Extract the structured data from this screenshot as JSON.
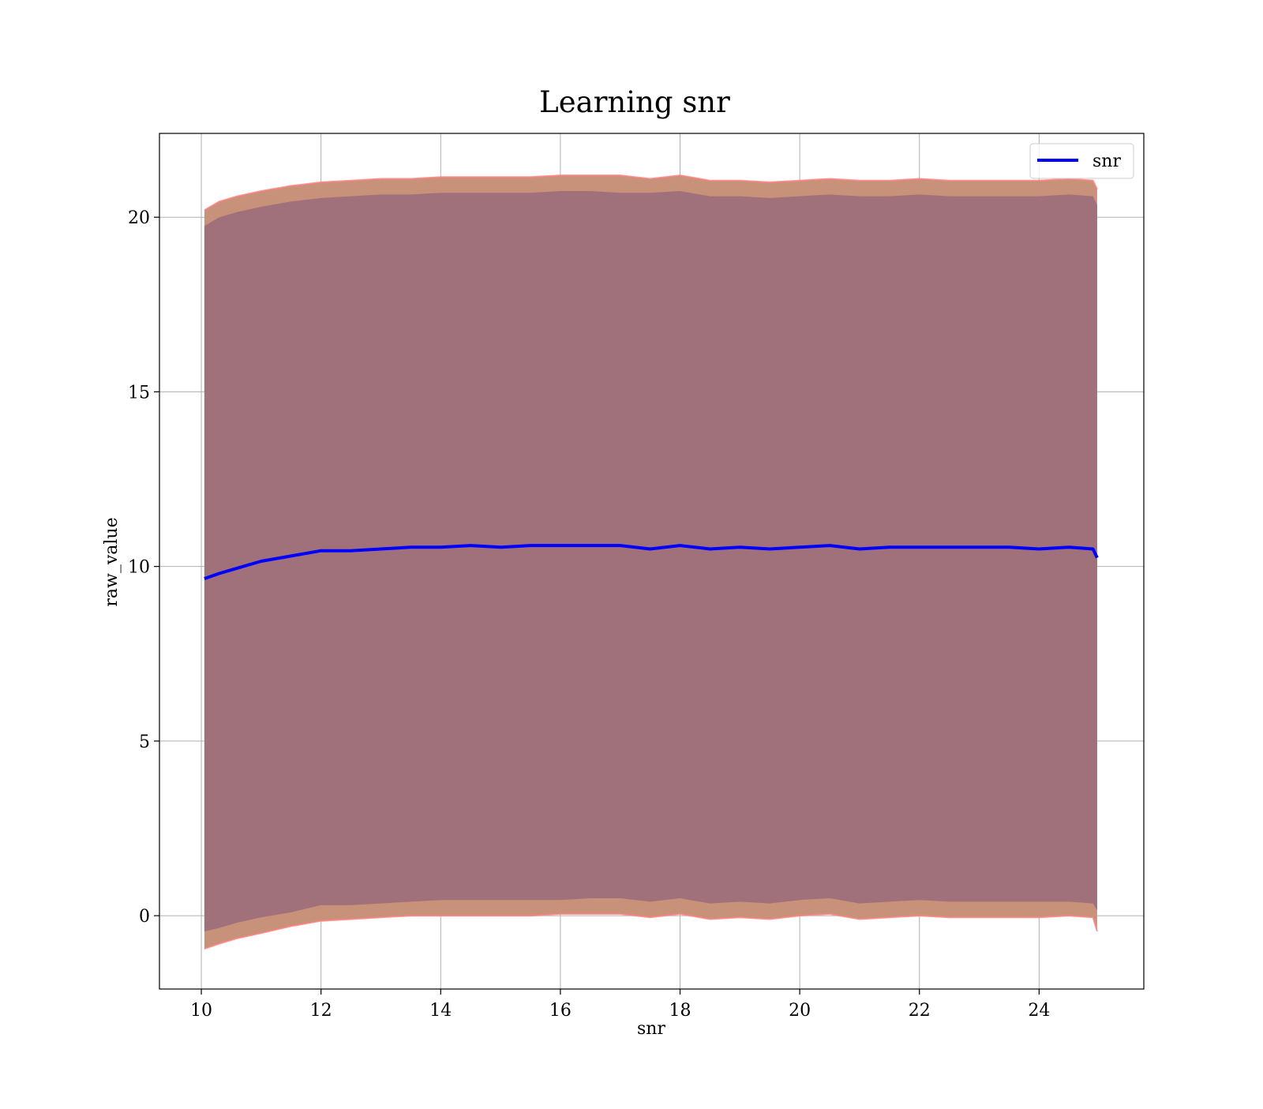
{
  "chart_data": {
    "type": "line",
    "title": "Learning snr",
    "xlabel": "snr",
    "ylabel": "raw_value",
    "xlim": [
      9.3,
      25.75
    ],
    "ylim": [
      -2.1,
      22.4
    ],
    "xticks": [
      10,
      12,
      14,
      16,
      18,
      20,
      22,
      24
    ],
    "yticks": [
      0,
      5,
      10,
      15,
      20
    ],
    "xtick_labels": [
      "10",
      "12",
      "14",
      "16",
      "18",
      "20",
      "22",
      "24"
    ],
    "ytick_labels": [
      "0",
      "5",
      "10",
      "15",
      "20"
    ],
    "grid": true,
    "legend": {
      "position": "top-right",
      "entries": [
        "snr"
      ]
    },
    "colors": {
      "line": "#0000ff",
      "inner_band": "#a0717b",
      "outer_band": "#c8927a",
      "band_edge": "#ff8080"
    },
    "series": [
      {
        "name": "snr",
        "x": [
          10.05,
          10.3,
          10.6,
          11.0,
          11.5,
          12.0,
          12.5,
          13.0,
          13.5,
          14.0,
          14.5,
          15.0,
          15.5,
          16.0,
          16.5,
          17.0,
          17.5,
          18.0,
          18.5,
          19.0,
          19.5,
          20.0,
          20.5,
          21.0,
          21.5,
          22.0,
          22.5,
          23.0,
          23.5,
          24.0,
          24.5,
          24.9,
          24.97
        ],
        "y": [
          9.65,
          9.8,
          9.95,
          10.15,
          10.3,
          10.45,
          10.45,
          10.5,
          10.55,
          10.55,
          10.6,
          10.55,
          10.6,
          10.6,
          10.6,
          10.6,
          10.5,
          10.6,
          10.5,
          10.55,
          10.5,
          10.55,
          10.6,
          10.5,
          10.55,
          10.55,
          10.55,
          10.55,
          10.55,
          10.5,
          10.55,
          10.5,
          10.25
        ]
      }
    ],
    "bands": {
      "inner_upper": [
        19.75,
        20.0,
        20.15,
        20.3,
        20.45,
        20.55,
        20.6,
        20.65,
        20.65,
        20.7,
        20.7,
        20.7,
        20.7,
        20.75,
        20.75,
        20.7,
        20.7,
        20.75,
        20.6,
        20.6,
        20.55,
        20.6,
        20.65,
        20.6,
        20.6,
        20.65,
        20.6,
        20.6,
        20.6,
        20.6,
        20.65,
        20.6,
        20.35
      ],
      "inner_lower": [
        -0.45,
        -0.35,
        -0.2,
        -0.05,
        0.1,
        0.3,
        0.3,
        0.35,
        0.4,
        0.45,
        0.45,
        0.45,
        0.45,
        0.45,
        0.5,
        0.5,
        0.4,
        0.5,
        0.35,
        0.4,
        0.35,
        0.45,
        0.5,
        0.35,
        0.4,
        0.45,
        0.4,
        0.4,
        0.4,
        0.4,
        0.4,
        0.35,
        0.15
      ],
      "outer_upper": [
        20.2,
        20.45,
        20.6,
        20.75,
        20.9,
        21.0,
        21.05,
        21.1,
        21.1,
        21.15,
        21.15,
        21.15,
        21.15,
        21.2,
        21.2,
        21.2,
        21.1,
        21.2,
        21.05,
        21.05,
        21.0,
        21.05,
        21.1,
        21.05,
        21.05,
        21.1,
        21.05,
        21.05,
        21.05,
        21.05,
        21.1,
        21.05,
        20.8
      ],
      "outer_lower": [
        -0.95,
        -0.8,
        -0.65,
        -0.5,
        -0.3,
        -0.15,
        -0.1,
        -0.05,
        0.0,
        0.0,
        0.0,
        0.0,
        0.0,
        0.05,
        0.05,
        0.05,
        -0.05,
        0.05,
        -0.1,
        -0.05,
        -0.1,
        0.0,
        0.05,
        -0.1,
        -0.05,
        0.0,
        -0.05,
        -0.05,
        -0.05,
        -0.05,
        0.0,
        -0.05,
        -0.45
      ]
    }
  }
}
